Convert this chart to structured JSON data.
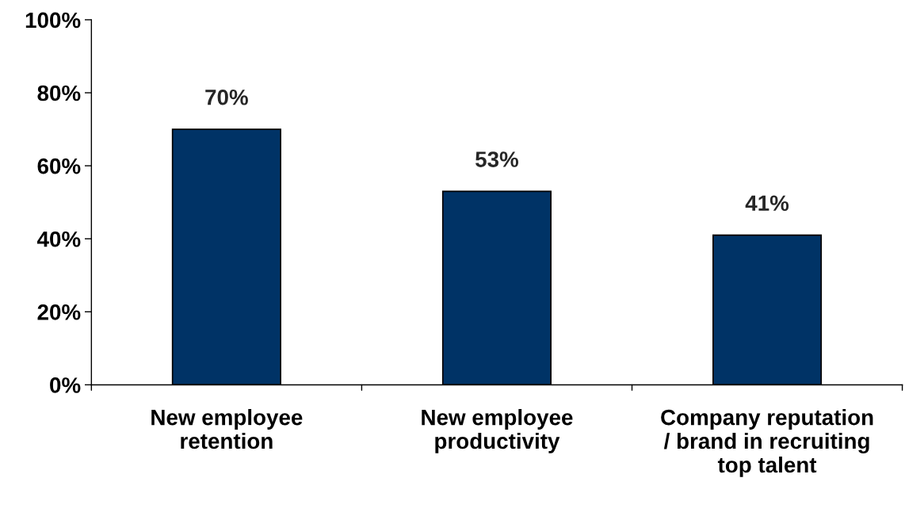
{
  "chart_data": {
    "type": "bar",
    "categories": [
      "New employee\nretention",
      "New employee\nproductivity",
      "Company reputation\n/ brand in recruiting\ntop talent"
    ],
    "values": [
      70,
      53,
      41
    ],
    "value_labels": [
      "70%",
      "53%",
      "41%"
    ],
    "color": "#003366",
    "ylim": [
      0,
      100
    ],
    "yticks": [
      {
        "value": 0,
        "label": "0%"
      },
      {
        "value": 20,
        "label": "20%"
      },
      {
        "value": 40,
        "label": "40%"
      },
      {
        "value": 60,
        "label": "60%"
      },
      {
        "value": 80,
        "label": "80%"
      },
      {
        "value": 100,
        "label": "100%"
      }
    ],
    "grid": false
  }
}
